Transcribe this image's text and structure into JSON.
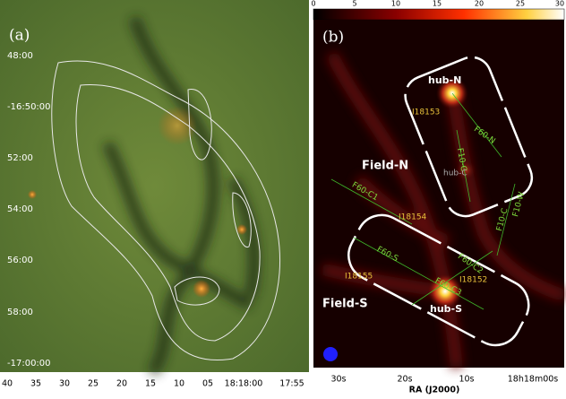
{
  "panel_a": {
    "label": "(a)",
    "y_ticks": [
      "48:00",
      "-16:50:00",
      "52:00",
      "54:00",
      "56:00",
      "58:00",
      "-17:00:00"
    ],
    "x_ticks": [
      "40",
      "35",
      "30",
      "25",
      "20",
      "15",
      "10",
      "05",
      "18:18:00",
      "17:55"
    ]
  },
  "panel_b": {
    "label": "(b)",
    "colorbar_ticks": [
      0,
      5,
      10,
      15,
      20,
      25,
      30
    ],
    "x_ticks": [
      "30s",
      "20s",
      "10s",
      "18h18m00s"
    ],
    "x_label": "RA (J2000)",
    "hubs": [
      "hub-N",
      "hub-C",
      "hub-S"
    ],
    "fields": [
      "Field-N",
      "Field-S"
    ],
    "sources": [
      "I18153",
      "I18154",
      "I18155",
      "I18152"
    ],
    "filaments": [
      "F60-N",
      "F10-C",
      "F60-C1",
      "F10-W",
      "F10-C",
      "F60-S",
      "F60-C2",
      "F60-C3"
    ]
  }
}
